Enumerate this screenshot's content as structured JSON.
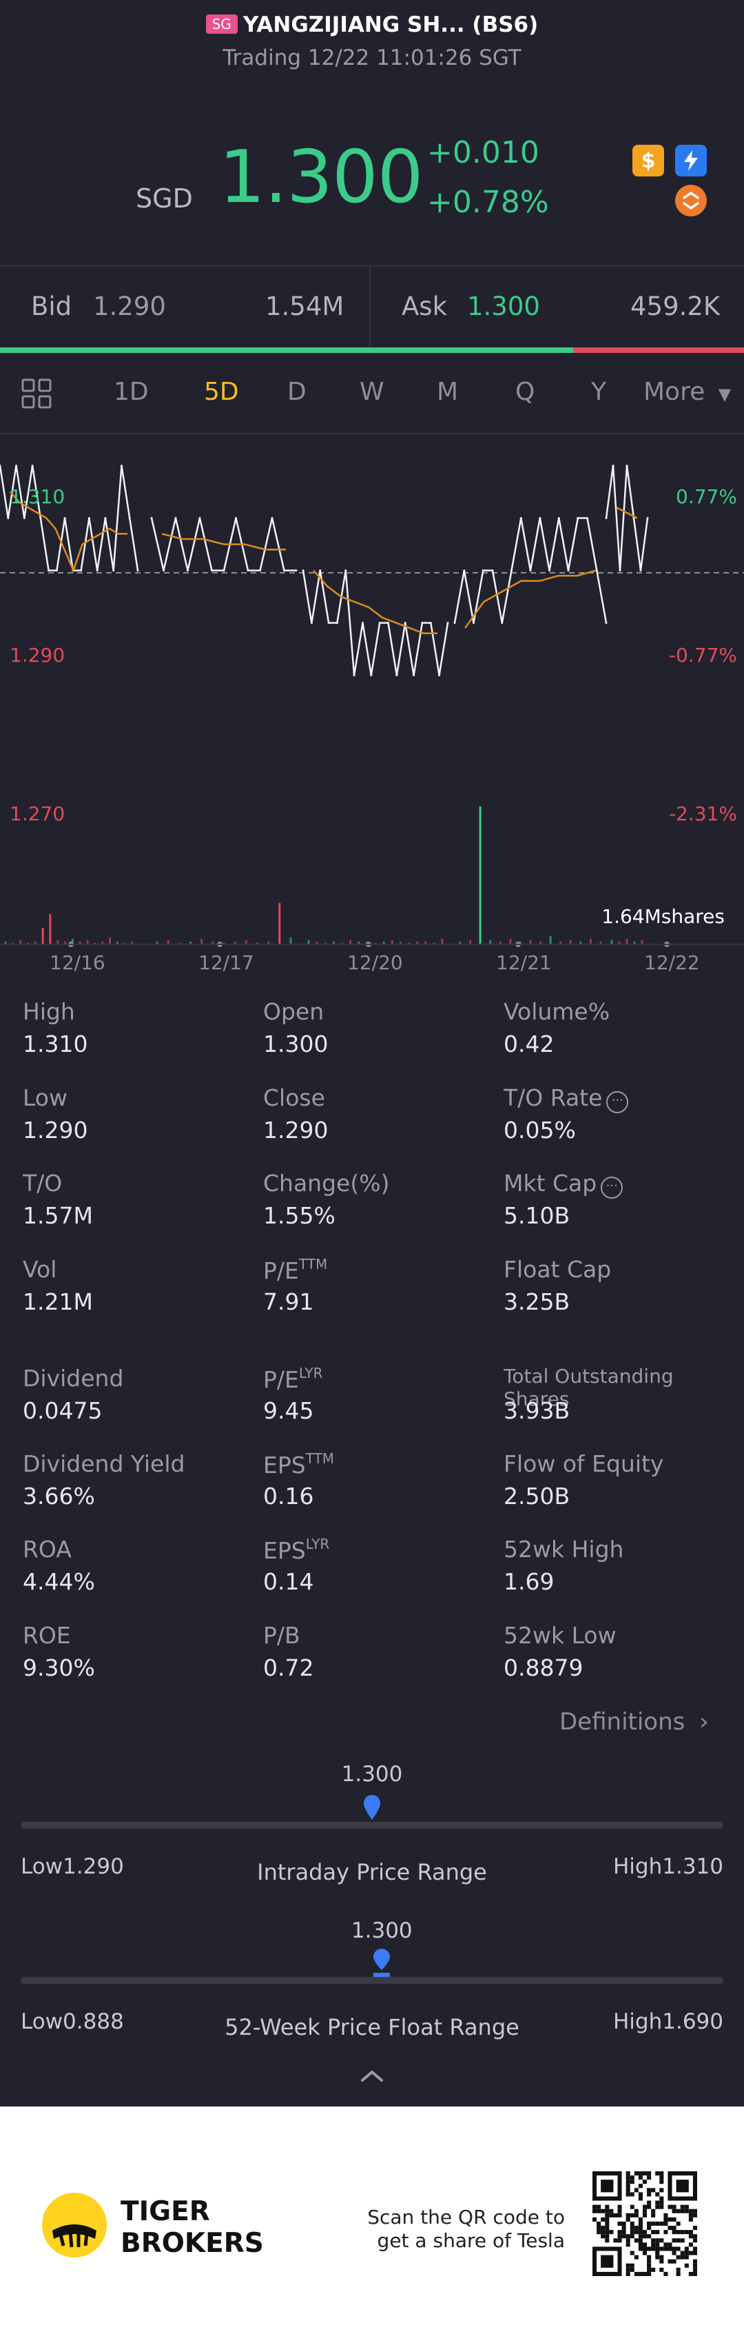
{
  "header": {
    "badge": "SG",
    "title": "YANGZIJIANG SH... (BS6)",
    "status": "Trading 12/22 11:01:26 SGT",
    "currency": "SGD",
    "price": "1.300",
    "change_abs": "+0.010",
    "change_pct": "+0.78%",
    "icons": [
      "dollar-badge-icon",
      "flash-icon",
      "swap-icon"
    ]
  },
  "quote": {
    "bid_label": "Bid",
    "bid_price": "1.290",
    "bid_volume": "1.54M",
    "ask_label": "Ask",
    "ask_price": "1.300",
    "ask_volume": "459.2K",
    "buy_ratio": 0.77
  },
  "tabs": {
    "items": [
      "1D",
      "5D",
      "D",
      "W",
      "M",
      "Q",
      "Y",
      "More"
    ],
    "active": "5D"
  },
  "chart_data": {
    "type": "line",
    "x_labels": [
      "12/16",
      "12/17",
      "12/20",
      "12/21",
      "12/22"
    ],
    "y_left_labels": [
      "1.310",
      "1.290",
      "1.270"
    ],
    "y_right_labels": [
      "0.77%",
      "-0.77%",
      "-2.31%"
    ],
    "ylim": [
      1.266,
      1.316
    ],
    "prev_close": 1.29,
    "volume_label": "1.64Mshares",
    "price_series": [
      {
        "day": "12/16",
        "values": [
          1.31,
          1.3,
          1.31,
          1.3,
          1.31,
          1.3,
          1.29,
          1.29,
          1.3,
          1.29,
          1.29,
          1.3,
          1.29,
          1.3,
          1.29,
          1.31,
          1.3,
          1.29
        ]
      },
      {
        "day": "12/17",
        "values": [
          1.3,
          1.29,
          1.3,
          1.29,
          1.3,
          1.29,
          1.29,
          1.3,
          1.29,
          1.29,
          1.3,
          1.29,
          1.29
        ]
      },
      {
        "day": "12/20",
        "values": [
          1.29,
          1.28,
          1.29,
          1.28,
          1.28,
          1.29,
          1.27,
          1.28,
          1.27,
          1.28,
          1.28,
          1.27,
          1.28,
          1.27,
          1.28,
          1.28,
          1.27,
          1.28
        ]
      },
      {
        "day": "12/21",
        "values": [
          1.28,
          1.29,
          1.28,
          1.29,
          1.29,
          1.28,
          1.29,
          1.3,
          1.29,
          1.3,
          1.29,
          1.3,
          1.29,
          1.3,
          1.3,
          1.29,
          1.28
        ]
      },
      {
        "day": "12/22",
        "values": [
          1.3,
          1.31,
          1.29,
          1.31,
          1.3,
          1.29,
          1.3
        ]
      }
    ],
    "avg_series": [
      {
        "day": "12/16",
        "values": [
          1.305,
          1.303,
          1.302,
          1.301,
          1.3,
          1.298,
          1.294,
          1.29,
          1.295,
          1.296,
          1.297,
          1.298,
          1.297,
          1.297
        ]
      },
      {
        "day": "12/17",
        "values": [
          1.297,
          1.296,
          1.296,
          1.295,
          1.295,
          1.294,
          1.294
        ]
      },
      {
        "day": "12/20",
        "values": [
          1.29,
          1.287,
          1.285,
          1.284,
          1.283,
          1.281,
          1.28,
          1.279,
          1.278,
          1.278
        ]
      },
      {
        "day": "12/21",
        "values": [
          1.279,
          1.284,
          1.286,
          1.288,
          1.288,
          1.289,
          1.289,
          1.29
        ]
      },
      {
        "day": "12/22",
        "values": [
          1.302,
          1.301,
          1.3
        ]
      }
    ],
    "volume_bars": [
      {
        "day": "12/16",
        "values": [
          0.02,
          0.01,
          0.03,
          0.01,
          0.02,
          0.12,
          0.22,
          0.03,
          0.02,
          0.04,
          0.02,
          0.03,
          0.01,
          0.02,
          0.05,
          0.02,
          0.01,
          0.02
        ]
      },
      {
        "day": "12/17",
        "values": [
          0.02,
          0.03,
          0.01,
          0.02,
          0.04,
          0.02,
          0.01,
          0.02,
          0.03,
          0.01,
          0.02,
          0.3,
          0.05
        ]
      },
      {
        "day": "12/20",
        "values": [
          0.03,
          0.02,
          0.01,
          0.02,
          0.01,
          0.03,
          0.02,
          0.02,
          0.01,
          0.02,
          0.03,
          0.02,
          0.01,
          0.02,
          0.02,
          0.01,
          0.04
        ]
      },
      {
        "day": "12/21",
        "values": [
          0.02,
          0.03,
          1.0,
          0.03,
          0.02,
          0.04,
          0.02,
          0.03,
          0.02,
          0.06,
          0.02,
          0.03,
          0.02,
          0.04,
          0.02
        ]
      },
      {
        "day": "12/22",
        "values": [
          0.03,
          0.02,
          0.04,
          0.02,
          0.03
        ]
      }
    ]
  },
  "stats": [
    {
      "label": "High",
      "value": "1.310"
    },
    {
      "label": "Open",
      "value": "1.300"
    },
    {
      "label": "Volume%",
      "value": "0.42"
    },
    {
      "label": "Low",
      "value": "1.290"
    },
    {
      "label": "Close",
      "value": "1.290"
    },
    {
      "label": "T/O Rate",
      "value": "0.05%"
    },
    {
      "label": "T/O",
      "value": "1.57M"
    },
    {
      "label": "Change(%)",
      "value": "1.55%"
    },
    {
      "label": "Mkt Cap",
      "value": "5.10B"
    },
    {
      "label": "Vol",
      "value": "1.21M"
    },
    {
      "label": "P/E",
      "sup": "TTM",
      "value": "7.91"
    },
    {
      "label": "Float Cap",
      "value": "3.25B"
    },
    {
      "label": "Dividend",
      "value": "0.0475"
    },
    {
      "label": "P/E",
      "sup": "LYR",
      "value": "9.45"
    },
    {
      "label": "Total Outstanding Shares",
      "value": "3.93B"
    },
    {
      "label": "Dividend Yield",
      "value": "3.66%"
    },
    {
      "label": "EPS",
      "sup": "TTM",
      "value": "0.16"
    },
    {
      "label": "Flow of Equity",
      "value": "2.50B"
    },
    {
      "label": "ROA",
      "value": "4.44%"
    },
    {
      "label": "EPS",
      "sup": "LYR",
      "value": "0.14"
    },
    {
      "label": "52wk High",
      "value": "1.69"
    },
    {
      "label": "ROE",
      "value": "9.30%"
    },
    {
      "label": "P/B",
      "value": "0.72"
    },
    {
      "label": "52wk Low",
      "value": "0.8879"
    }
  ],
  "definitions_label": "Definitions",
  "intraday_range": {
    "current": "1.300",
    "low": "Low1.290",
    "high": "High1.310",
    "title": "Intraday Price Range",
    "position": 0.5
  },
  "week52_range": {
    "current": "1.300",
    "low": "Low0.888",
    "high": "High1.690",
    "title": "52-Week Price Float Range",
    "position": 0.514
  },
  "footer": {
    "brand_line1": "TIGER",
    "brand_line2": "BROKERS",
    "qr_line1": "Scan the QR code to",
    "qr_line2": "get a share of Tesla"
  },
  "colors": {
    "up": "#3bcc8a",
    "down": "#e44a5a",
    "active_tab": "#f4bf1b",
    "range_marker": "#3b7cf5",
    "avg_line": "#e08a1e"
  }
}
